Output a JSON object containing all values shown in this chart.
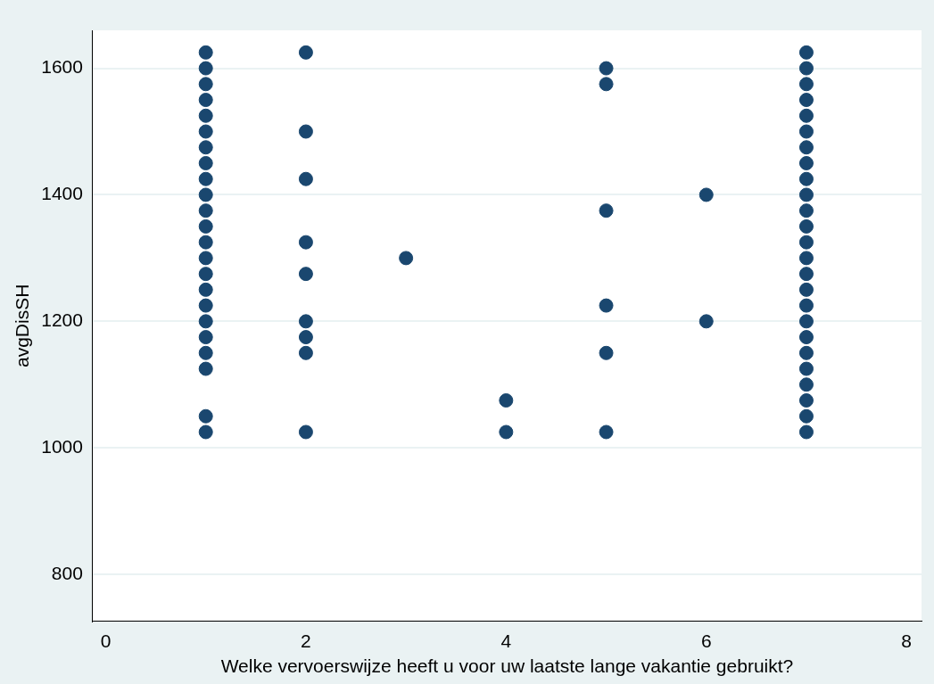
{
  "chart_data": {
    "type": "scatter",
    "xlabel": "Welke vervoerswijze heeft u voor uw laatste lange vakantie gebruikt?",
    "ylabel": "avgDisSH",
    "x": [
      1,
      1,
      1,
      1,
      1,
      1,
      1,
      1,
      1,
      1,
      1,
      1,
      1,
      1,
      1,
      1,
      1,
      1,
      1,
      1,
      1,
      1,
      1,
      2,
      2,
      2,
      2,
      2,
      2,
      2,
      2,
      2,
      3,
      4,
      4,
      5,
      5,
      5,
      5,
      5,
      5,
      6,
      6,
      7,
      7,
      7,
      7,
      7,
      7,
      7,
      7,
      7,
      7,
      7,
      7,
      7,
      7,
      7,
      7,
      7,
      7,
      7,
      7,
      7,
      7,
      7,
      7,
      7
    ],
    "values": [
      1625,
      1600,
      1575,
      1550,
      1525,
      1500,
      1475,
      1450,
      1425,
      1400,
      1375,
      1350,
      1325,
      1300,
      1275,
      1250,
      1225,
      1200,
      1175,
      1150,
      1125,
      1050,
      1025,
      1625,
      1500,
      1425,
      1325,
      1275,
      1200,
      1175,
      1150,
      1025,
      1300,
      1075,
      1025,
      1600,
      1575,
      1375,
      1225,
      1150,
      1025,
      1400,
      1200,
      1625,
      1600,
      1575,
      1550,
      1525,
      1500,
      1475,
      1450,
      1425,
      1400,
      1375,
      1350,
      1325,
      1300,
      1275,
      1250,
      1225,
      1200,
      1175,
      1150,
      1125,
      1100,
      1075,
      1050,
      1025
    ],
    "color": "#1a476f",
    "marker": "circle",
    "grid": "y",
    "xlim": [
      -0.13,
      8.15
    ],
    "xticks": [
      0,
      2,
      4,
      6,
      8
    ],
    "ylim": [
      726,
      1660
    ],
    "yticks": [
      800,
      1000,
      1200,
      1400,
      1600
    ]
  }
}
